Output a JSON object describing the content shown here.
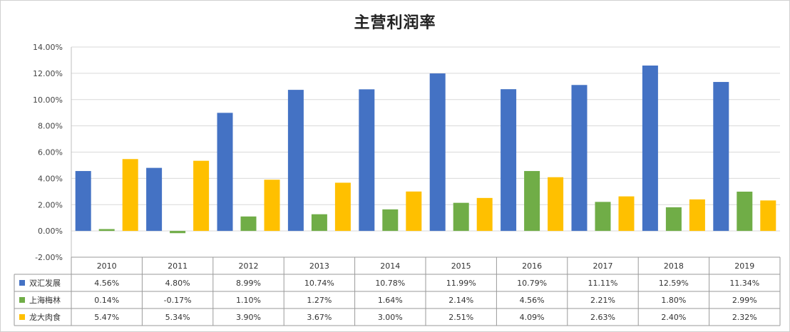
{
  "chart_data": {
    "type": "bar",
    "title": "主营利润率",
    "xlabel": "",
    "ylabel": "",
    "ylim": [
      -2.0,
      14.0
    ],
    "ytick_labels": [
      "14.00%",
      "12.00%",
      "10.00%",
      "8.00%",
      "6.00%",
      "4.00%",
      "2.00%",
      "0.00%",
      "-2.00%"
    ],
    "ytick_values": [
      14,
      12,
      10,
      8,
      6,
      4,
      2,
      0,
      -2
    ],
    "grid": true,
    "legend": "data-table",
    "categories": [
      "2010",
      "2011",
      "2012",
      "2013",
      "2014",
      "2015",
      "2016",
      "2017",
      "2018",
      "2019"
    ],
    "series": [
      {
        "name": "双汇发展",
        "color": "#4472C4",
        "values": [
          4.56,
          4.8,
          8.99,
          10.74,
          10.78,
          11.99,
          10.79,
          11.11,
          12.59,
          11.34
        ],
        "labels": [
          "4.56%",
          "4.80%",
          "8.99%",
          "10.74%",
          "10.78%",
          "11.99%",
          "10.79%",
          "11.11%",
          "12.59%",
          "11.34%"
        ]
      },
      {
        "name": "上海梅林",
        "color": "#70AD47",
        "values": [
          0.14,
          -0.17,
          1.1,
          1.27,
          1.64,
          2.14,
          4.56,
          2.21,
          1.8,
          2.99
        ],
        "labels": [
          "0.14%",
          "-0.17%",
          "1.10%",
          "1.27%",
          "1.64%",
          "2.14%",
          "4.56%",
          "2.21%",
          "1.80%",
          "2.99%"
        ]
      },
      {
        "name": "龙大肉食",
        "color": "#FFC000",
        "values": [
          5.47,
          5.34,
          3.9,
          3.67,
          3.0,
          2.51,
          4.09,
          2.63,
          2.4,
          2.32
        ],
        "labels": [
          "5.47%",
          "5.34%",
          "3.90%",
          "3.67%",
          "3.00%",
          "2.51%",
          "4.09%",
          "2.63%",
          "2.40%",
          "2.32%"
        ]
      }
    ]
  }
}
